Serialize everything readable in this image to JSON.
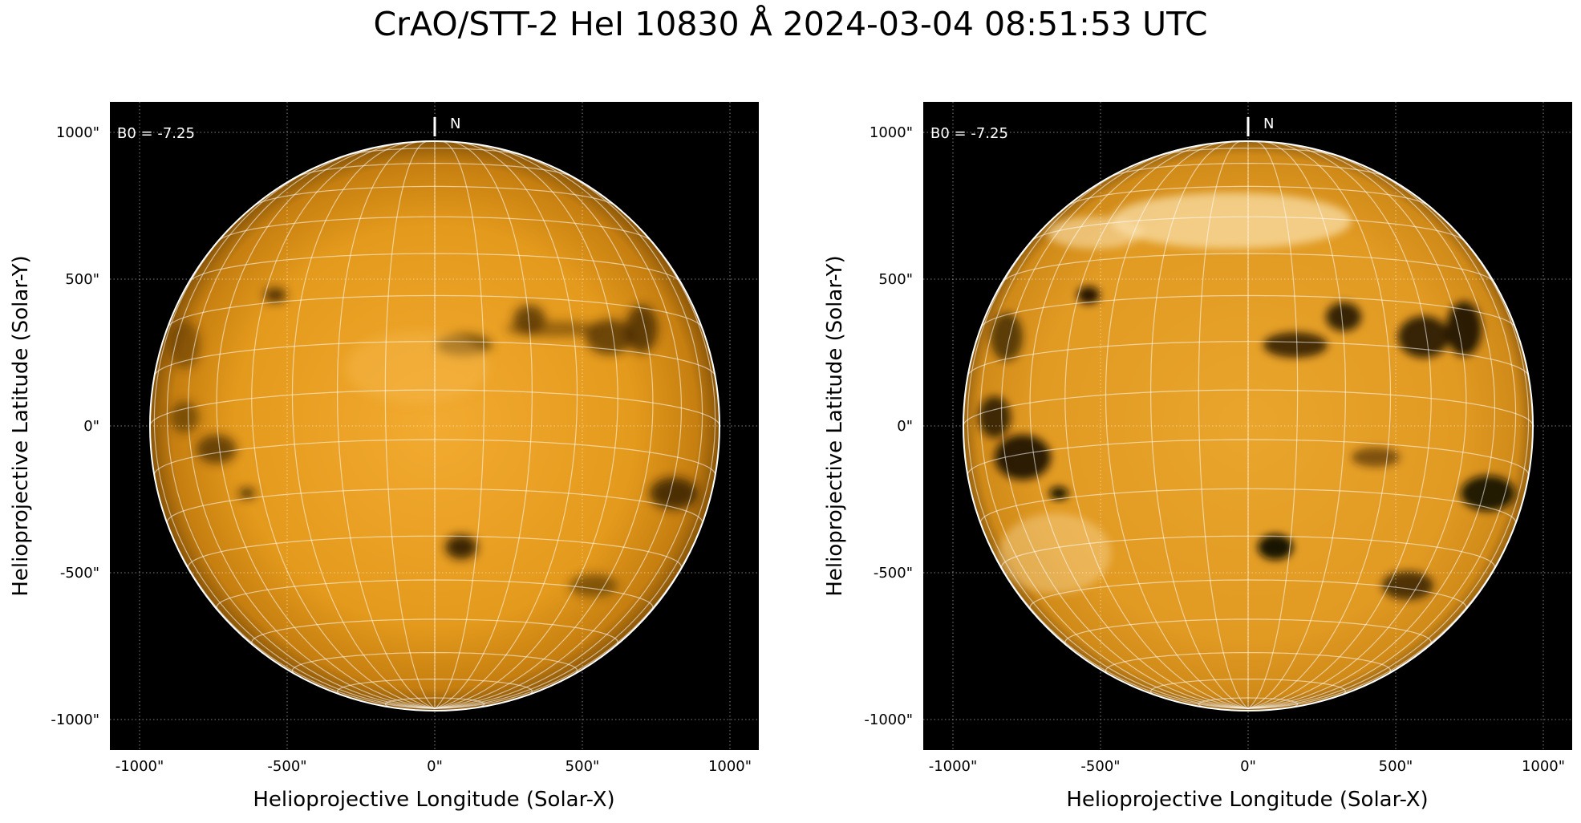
{
  "title": "CrAO/STT-2 HeI 10830 Å 2024-03-04 08:51:53 UTC",
  "colors": {
    "background": "#000000",
    "disk_light": "#f0a72a",
    "disk_mid": "#d68a14",
    "disk_dark": "#7a4a08",
    "grid": "#ffffff"
  },
  "panels": [
    {
      "id": "left",
      "b0_label": "B0 = -7.25",
      "north_label": "N",
      "xlabel": "Helioprojective Longitude (Solar-X)",
      "ylabel": "Helioprojective Latitude (Solar-Y)",
      "x_ticks": [
        "-1000\"",
        "-500\"",
        "0\"",
        "500\"",
        "1000\""
      ],
      "y_ticks": [
        "1000\"",
        "500\"",
        "0\"",
        "-500\"",
        "-1000\""
      ],
      "contrast": "normal"
    },
    {
      "id": "right",
      "b0_label": "B0 = -7.25",
      "north_label": "N",
      "xlabel": "Helioprojective Longitude (Solar-X)",
      "ylabel": "Helioprojective Latitude (Solar-Y)",
      "x_ticks": [
        "-1000\"",
        "-500\"",
        "0\"",
        "500\"",
        "1000\""
      ],
      "y_ticks": [
        "1000\"",
        "500\"",
        "0\"",
        "-500\"",
        "-1000\""
      ],
      "contrast": "enhanced"
    }
  ]
}
